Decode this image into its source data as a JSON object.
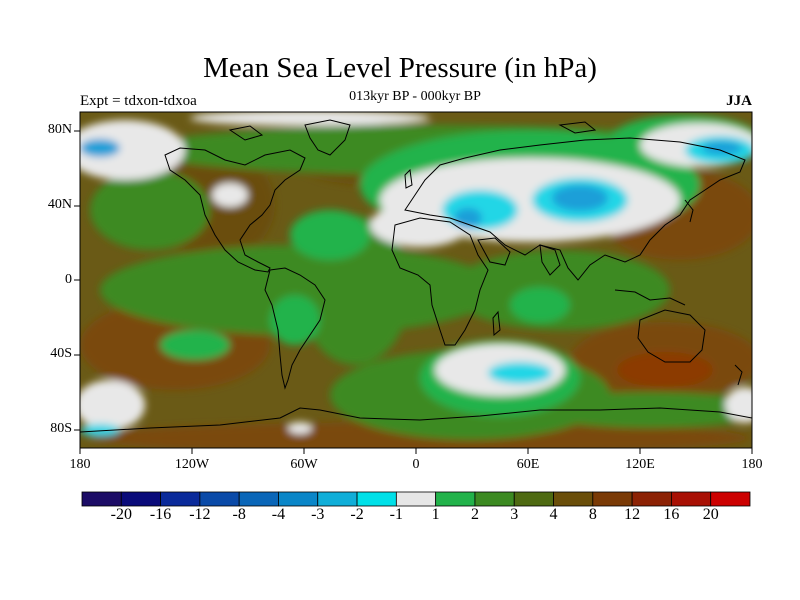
{
  "title": "Mean Sea Level Pressure (in hPa)",
  "subtitle": "013kyr BP - 000kyr BP",
  "experiment": "Expt = tdxon-tdxoa",
  "season": "JJA",
  "lat_labels": [
    "80N",
    "40N",
    "0",
    "40S",
    "80S"
  ],
  "lon_labels": [
    "180",
    "120W",
    "60W",
    "0",
    "60E",
    "120E",
    "180"
  ],
  "colorbar": {
    "labels": [
      "-20",
      "-16",
      "-12",
      "-8",
      "-4",
      "-3",
      "-2",
      "-1",
      "1",
      "2",
      "3",
      "4",
      "8",
      "12",
      "16",
      "20"
    ],
    "colors": [
      "#1c0c66",
      "#0a0b7a",
      "#0a2a9a",
      "#0a4aa8",
      "#0a66b8",
      "#0a86c8",
      "#10aed8",
      "#00e0e8",
      "#e6e6e6",
      "#22b24a",
      "#3c8a22",
      "#4e6a12",
      "#6a4e0a",
      "#7a3a06",
      "#8c2204",
      "#a81004",
      "#cc0000"
    ]
  },
  "map_colors": {
    "base": "#6a5a16",
    "green": "#3d8a22",
    "light_green": "#24b34c",
    "white": "#e8e8e8",
    "cyan": "#22d6e6",
    "blue": "#1a9fd8",
    "brown": "#7a4a08",
    "dark_brown": "#8c3a06"
  }
}
